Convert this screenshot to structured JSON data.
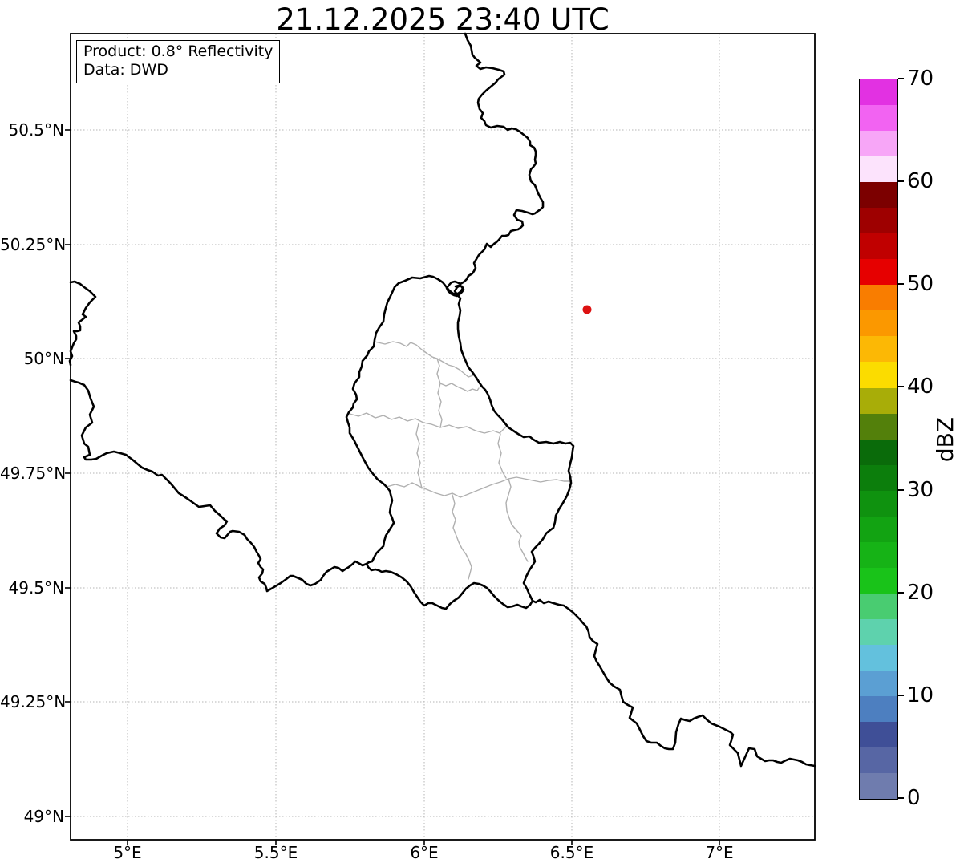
{
  "title": "21.12.2025 23:40 UTC",
  "info_box": {
    "product": "Product: 0.8° Reflectivity",
    "source": "Data: DWD"
  },
  "axes": {
    "x_tick_labels": [
      "5°E",
      "5.5°E",
      "6°E",
      "6.5°E",
      "7°E"
    ],
    "y_tick_labels": [
      "50.5°N",
      "50.25°N",
      "50°N",
      "49.75°N",
      "49.5°N",
      "49.25°N",
      "49°N"
    ]
  },
  "colorbar": {
    "label": "dBZ",
    "tick_labels_top_to_bottom": [
      "70",
      "60",
      "50",
      "40",
      "30",
      "20",
      "10",
      "0"
    ],
    "value_range_dbz": [
      0,
      70
    ],
    "segment_step_dbz": 2.5,
    "segment_colors_bottom_to_top": [
      "#6f7cae",
      "#5766a4",
      "#3f4f97",
      "#4d7fc0",
      "#5b9fd3",
      "#63c1dd",
      "#5ed2ad",
      "#49cc71",
      "#19c319",
      "#16b316",
      "#12a312",
      "#0f920f",
      "#0c7e0c",
      "#0a6b0a",
      "#53800b",
      "#a8ad08",
      "#fbdc00",
      "#fcb805",
      "#fb9800",
      "#f97d00",
      "#e60000",
      "#c00000",
      "#9e0000",
      "#7c0000",
      "#fce3fc",
      "#f7a6f7",
      "#f263f2",
      "#e231e2"
    ]
  },
  "marker": {
    "color": "#dd1111",
    "edge_color": "#b30000"
  },
  "map_colors": {
    "country_border": "#000000",
    "canton_border": "#b0b0b0",
    "gridline": "#b4b4b4",
    "background": "#ffffff"
  }
}
